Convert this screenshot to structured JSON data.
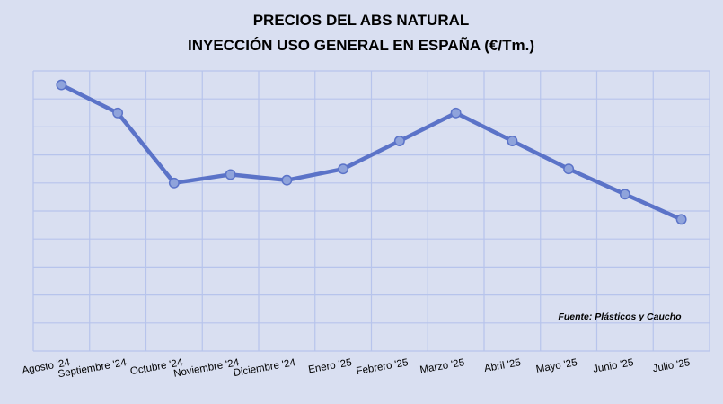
{
  "chart_data": {
    "type": "line",
    "title": "PRECIOS DEL ABS NATURAL",
    "subtitle": "INYECCIÓN USO GENERAL EN ESPAÑA (€/Tm.)",
    "categories": [
      "Agosto '24",
      "Septiembre '24",
      "Octubre '24",
      "Noviembre '24",
      "Diciembre '24",
      "Enero '25",
      "Febrero '25",
      "Marzo '25",
      "Abril '25",
      "Mayo '25",
      "Junio '25",
      "Julio '25"
    ],
    "series": [
      {
        "values": [
          9.5,
          8.5,
          6.0,
          6.3,
          6.1,
          6.5,
          7.5,
          8.5,
          7.5,
          6.5,
          5.6,
          4.7
        ]
      }
    ],
    "ylim": [
      0,
      10
    ],
    "y_tick_labels_shown": false,
    "grid": true,
    "line_color": "#5b73c8",
    "marker_color": "#8fa3db",
    "background_color": "#d9dff1",
    "grid_color": "#b7c4ec",
    "source": "Fuente: Plásticos y Caucho"
  }
}
